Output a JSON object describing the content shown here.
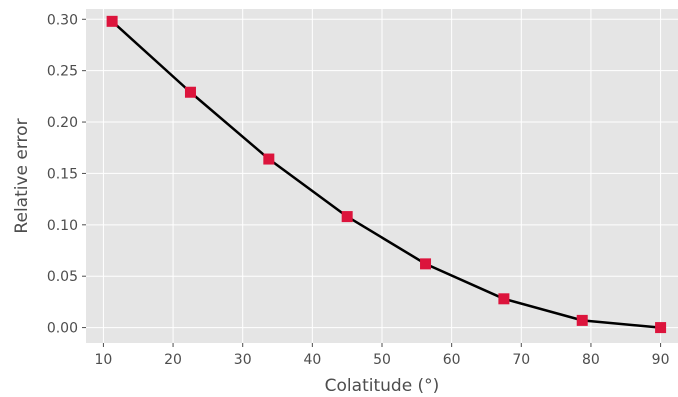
{
  "chart_data": {
    "type": "line",
    "title": "",
    "xlabel": "Colatitude (°)",
    "ylabel": "Relative error",
    "xlim": [
      7.5,
      92.5
    ],
    "ylim": [
      -0.015,
      0.31
    ],
    "xticks": [
      10,
      20,
      30,
      40,
      50,
      60,
      70,
      80,
      90
    ],
    "yticks": [
      0.0,
      0.05,
      0.1,
      0.15,
      0.2,
      0.25,
      0.3
    ],
    "xtick_labels": [
      "10",
      "20",
      "30",
      "40",
      "50",
      "60",
      "70",
      "80",
      "90"
    ],
    "ytick_labels": [
      "0.00",
      "0.05",
      "0.10",
      "0.15",
      "0.20",
      "0.25",
      "0.30"
    ],
    "grid": true,
    "background": "#e5e5e5",
    "grid_color": "#ffffff",
    "series": [
      {
        "x": [
          11.25,
          22.5,
          33.75,
          45.0,
          56.25,
          67.5,
          78.75,
          90.0
        ],
        "y": [
          0.298,
          0.229,
          0.164,
          0.108,
          0.062,
          0.028,
          0.007,
          0.0
        ],
        "line_color": "#000000",
        "marker": "square",
        "marker_color": "#dc143c"
      }
    ]
  }
}
